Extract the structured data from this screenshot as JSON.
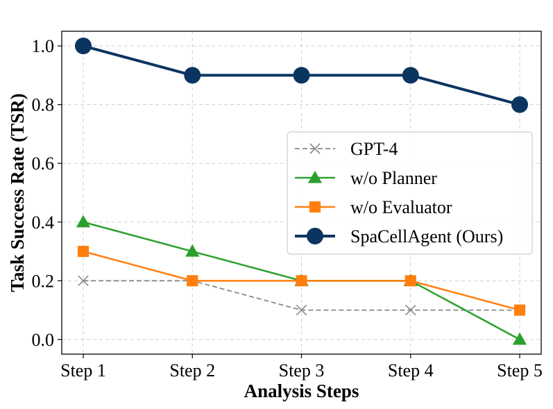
{
  "chart_data": {
    "type": "line",
    "title": "",
    "xlabel": "Analysis Steps",
    "ylabel": "Task Success Rate (TSR)",
    "categories": [
      "Step 1",
      "Step 2",
      "Step 3",
      "Step 4",
      "Step 5"
    ],
    "ylim": [
      -0.05,
      1.05
    ],
    "yticks": [
      "0.0",
      "0.2",
      "0.4",
      "0.6",
      "0.8",
      "1.0"
    ],
    "grid": true,
    "legend_position": "center-right",
    "series": [
      {
        "name": "GPT-4",
        "values": [
          0.2,
          0.2,
          0.1,
          0.1,
          0.1
        ],
        "color": "#888888",
        "marker": "x",
        "dashed": true
      },
      {
        "name": "w/o Planner",
        "values": [
          0.4,
          0.3,
          0.2,
          0.2,
          0.0
        ],
        "color": "#2ca02c",
        "marker": "triangle",
        "dashed": false
      },
      {
        "name": "w/o Evaluator",
        "values": [
          0.3,
          0.2,
          0.2,
          0.2,
          0.1
        ],
        "color": "#ff7f0e",
        "marker": "square",
        "dashed": false
      },
      {
        "name": "SpaCellAgent (Ours)",
        "values": [
          1.0,
          0.9,
          0.9,
          0.9,
          0.8
        ],
        "color": "#0b3560",
        "marker": "circle",
        "dashed": false
      }
    ]
  }
}
